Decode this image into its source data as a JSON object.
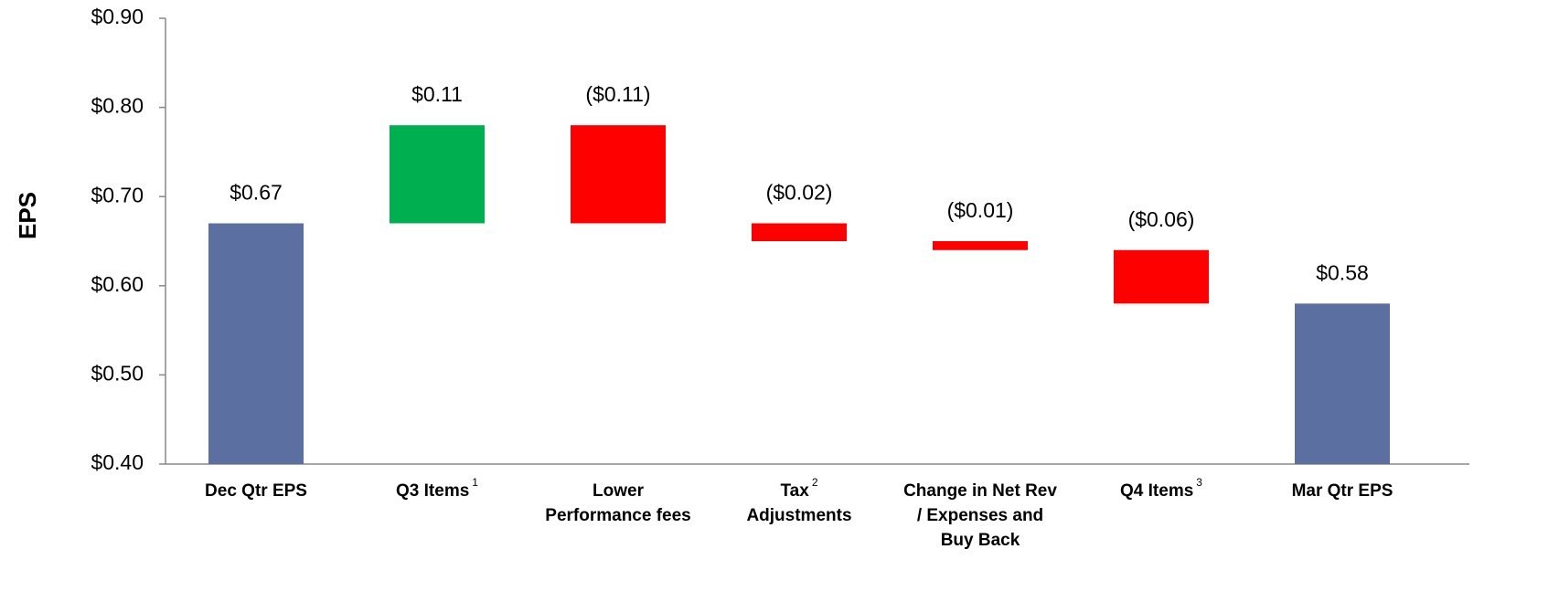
{
  "chart_data": {
    "type": "waterfall",
    "y_label": "EPS",
    "categories": [
      [
        "Dec Qtr EPS"
      ],
      [
        "Q3 Items"
      ],
      [
        "Lower",
        "Performance fees"
      ],
      [
        "Tax",
        "Adjustments"
      ],
      [
        "Change in Net Rev",
        "/ Expenses and",
        "Buy Back"
      ],
      [
        "Q4 Items"
      ],
      [
        "Mar Qtr EPS"
      ]
    ],
    "footnotes": [
      null,
      "1",
      null,
      "2",
      null,
      "3",
      null
    ],
    "measure": [
      "absolute",
      "relative",
      "relative",
      "relative",
      "relative",
      "relative",
      "absolute"
    ],
    "values": [
      0.67,
      0.11,
      -0.11,
      -0.02,
      -0.01,
      -0.06,
      0.58
    ],
    "value_labels": [
      "$0.67",
      "$0.11",
      "($0.11)",
      "($0.02)",
      "($0.01)",
      "($0.06)",
      "$0.58"
    ],
    "colors": {
      "total": "#5b6fa0",
      "increase": "#00b050",
      "decrease": "#ff0000"
    },
    "ylim": [
      0.4,
      0.9
    ],
    "yticks": [
      {
        "value": 0.4,
        "label": "$0.40"
      },
      {
        "value": 0.5,
        "label": "$0.50"
      },
      {
        "value": 0.6,
        "label": "$0.60"
      },
      {
        "value": 0.7,
        "label": "$0.70"
      },
      {
        "value": 0.8,
        "label": "$0.80"
      },
      {
        "value": 0.9,
        "label": "$0.90"
      }
    ],
    "grid": false
  }
}
